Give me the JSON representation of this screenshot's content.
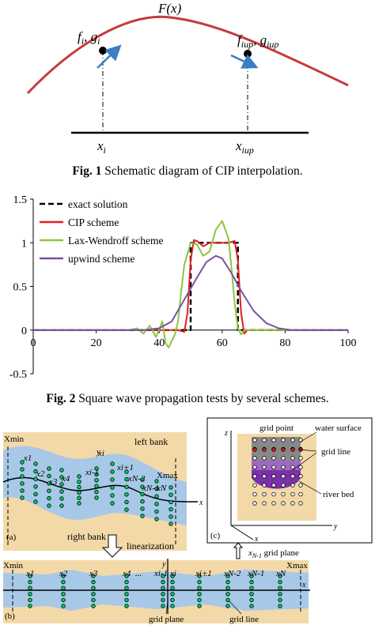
{
  "fig1": {
    "fx_label": "F(x)",
    "left_point_label": "f",
    "left_point_label2": "g",
    "left_sub": "i",
    "right_point_label": "f",
    "right_point_label2": "g",
    "right_sub": "iup",
    "x_left": "x",
    "x_left_sub": "i",
    "x_right": "x",
    "x_right_sub": "iup",
    "caption_prefix": "Fig. 1",
    "caption_text": " Schematic diagram of CIP interpolation."
  },
  "fig2": {
    "caption_prefix": "Fig. 2",
    "caption_text": " Square wave propagation tests by several schemes."
  },
  "chart_data": {
    "type": "line",
    "title": "",
    "xlabel": "",
    "ylabel": "",
    "xlim": [
      0,
      100
    ],
    "ylim": [
      -0.5,
      1.5
    ],
    "x_ticks": [
      "0",
      "20",
      "40",
      "60",
      "80",
      "100"
    ],
    "y_ticks": [
      "1.5",
      "1",
      "0.5",
      "0",
      "-0.5"
    ],
    "legend_position": "top-left",
    "series": [
      {
        "name": "exact solution",
        "color": "#000000",
        "dash": true,
        "x": [
          0,
          50,
          50,
          65,
          65,
          100
        ],
        "y": [
          0,
          0,
          1,
          1,
          0,
          0
        ]
      },
      {
        "name": "CIP scheme",
        "color": "#e02020",
        "x": [
          0,
          46,
          48,
          49,
          50,
          51,
          52,
          54,
          56,
          58,
          60,
          62,
          64,
          65,
          66,
          67,
          68,
          70,
          100
        ],
        "y": [
          0,
          0,
          -0.02,
          0.2,
          0.8,
          1.03,
          1.02,
          0.96,
          1.0,
          1.0,
          1.0,
          1.0,
          1.02,
          0.8,
          0.2,
          -0.04,
          0.0,
          0.0,
          0
        ]
      },
      {
        "name": "Lax-Wendroff scheme",
        "color": "#8cc63f",
        "x": [
          0,
          30,
          33,
          35,
          37,
          39,
          41,
          42,
          43,
          45,
          46,
          47,
          48,
          50,
          52,
          54,
          56,
          58,
          60,
          62,
          63,
          64,
          65,
          66,
          67,
          70,
          100
        ],
        "y": [
          0,
          0,
          0.02,
          -0.04,
          0.05,
          -0.08,
          0.1,
          -0.15,
          -0.2,
          -0.05,
          0.1,
          0.45,
          0.75,
          1.0,
          0.98,
          0.85,
          0.9,
          1.15,
          1.25,
          1.05,
          0.7,
          0.3,
          0.02,
          -0.05,
          0.0,
          0.0,
          0
        ]
      },
      {
        "name": "upwind scheme",
        "color": "#7b4fa8",
        "x": [
          0,
          35,
          40,
          44,
          48,
          52,
          55,
          58,
          60,
          63,
          66,
          70,
          74,
          78,
          82,
          100
        ],
        "y": [
          0,
          0.0,
          0.02,
          0.1,
          0.35,
          0.6,
          0.78,
          0.85,
          0.82,
          0.65,
          0.45,
          0.22,
          0.08,
          0.02,
          0.0,
          0
        ]
      }
    ]
  },
  "fig3": {
    "xmin": "Xmin",
    "xmax": "Xmax",
    "left_bank": "left bank",
    "right_bank": "right bank",
    "y": "y",
    "x": "x",
    "z": "z",
    "panel_a": "(a)",
    "panel_b": "(b)",
    "panel_c": "(c)",
    "linearization": "linearization",
    "grid_point": "grid point",
    "water_surface": "water surface",
    "grid_line": "grid line",
    "river_bed": "river bed",
    "grid_plane_top": "grid plane",
    "grid_plane_label": "x",
    "grid_plane_sub": "N-1",
    "grid_plane_bottom": "grid plane",
    "grid_line_bottom": "grid line",
    "labels_a": [
      "x1",
      "x2",
      "x3",
      "x4",
      "xi-1",
      "xi",
      "xi+1",
      "xN-2",
      "xN-1",
      "xN"
    ],
    "labels_b": [
      "x1",
      "x2",
      "x3",
      "x4",
      "...",
      "xi-1",
      "xi",
      "xi+1",
      "...",
      "xN-2",
      "xN-1",
      "xN"
    ]
  }
}
